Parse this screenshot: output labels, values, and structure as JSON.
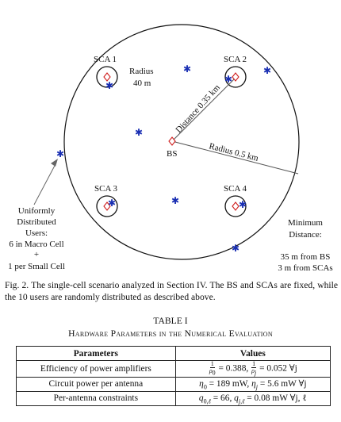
{
  "figure": {
    "bs_label": "BS",
    "scas": [
      {
        "label": "SCA 1"
      },
      {
        "label": "SCA 2"
      },
      {
        "label": "SCA 3"
      },
      {
        "label": "SCA 4"
      }
    ],
    "radius_sca_line1": "Radius",
    "radius_sca_line2": "40 m",
    "distance_label": "Distance 0.35 km",
    "radius_cell_label": "Radius 0.5 km",
    "users_note": [
      "Uniformly",
      "Distributed",
      "Users:",
      "6 in Macro Cell",
      "+",
      "1 per Small Cell"
    ],
    "min_distance_note": [
      "Minimum",
      "Distance:",
      "",
      "35 m from BS",
      "3 m from SCAs"
    ],
    "user_count": 10,
    "colors": {
      "user": "#1a2fb3",
      "bs_sca_marker": "#d02020",
      "lines": "#111111",
      "arrow": "#666666"
    }
  },
  "caption": "Fig. 2.  The single-cell scenario analyzed in Section IV. The BS and SCAs are fixed, while the 10 users are randomly distributed as described above.",
  "table": {
    "number": "TABLE I",
    "title": "Hardware Parameters in the Numerical Evaluation",
    "headers": [
      "Parameters",
      "Values"
    ],
    "rows": [
      {
        "param": "Efficiency of power amplifiers",
        "v1": "= 0.388,",
        "v2": "= 0.052 ∀j"
      },
      {
        "param": "Circuit power per antenna",
        "v1": " = 189 mW, ",
        "v2": " = 5.6 mW ∀j"
      },
      {
        "param": "Per-antenna constraints",
        "v1": " = 66, ",
        "v2": " = 0.08 mW ∀j, ℓ"
      }
    ]
  }
}
